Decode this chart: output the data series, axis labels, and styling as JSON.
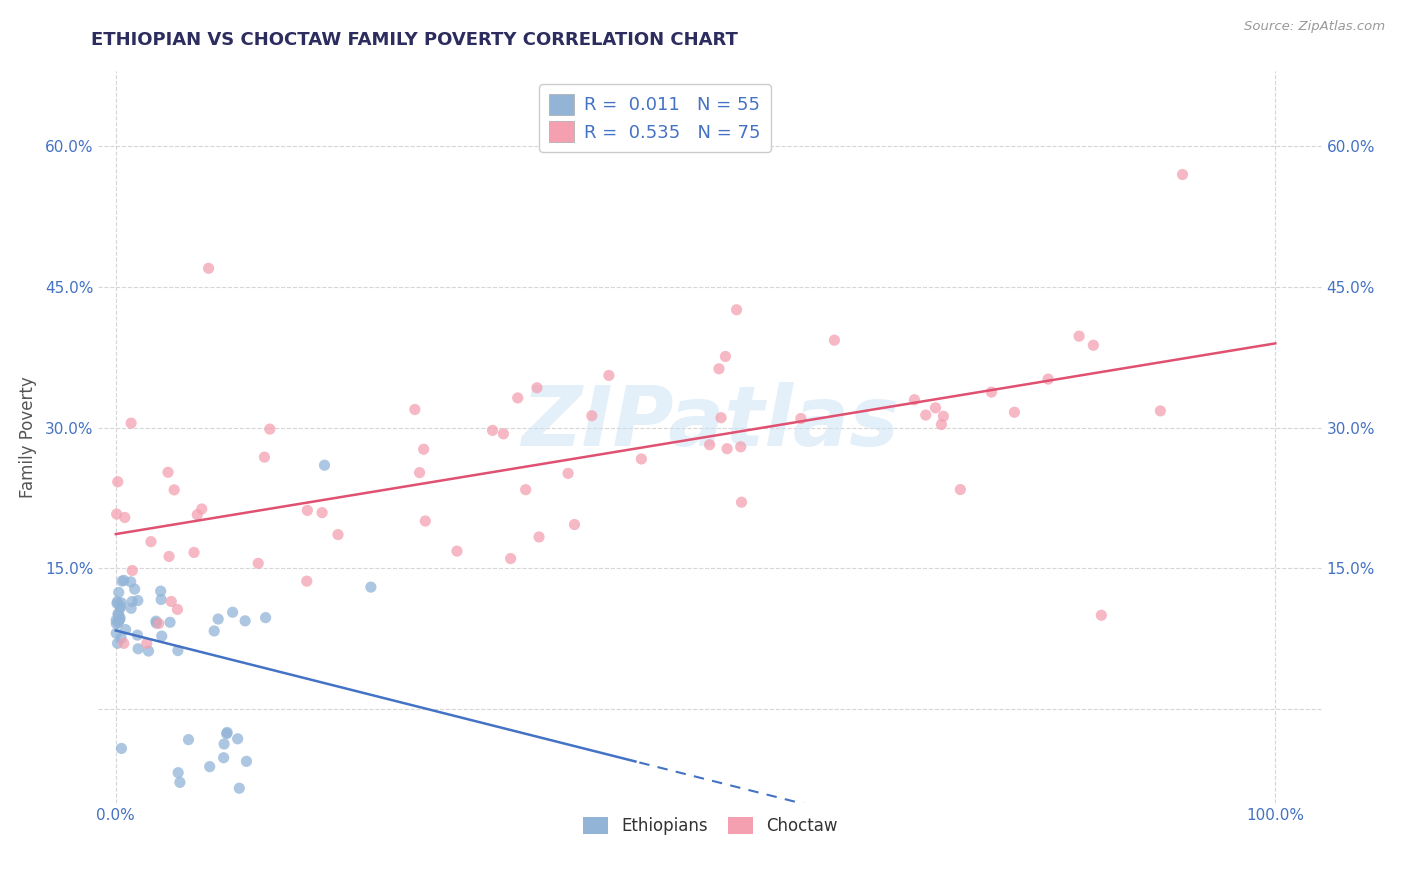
{
  "title": "ETHIOPIAN VS CHOCTAW FAMILY POVERTY CORRELATION CHART",
  "source": "Source: ZipAtlas.com",
  "ylabel": "Family Poverty",
  "watermark_text": "ZIPatlas",
  "ethiopian_color": "#92b4d7",
  "choctaw_color": "#f4a0b0",
  "ethiopian_line_color": "#4472c4",
  "choctaw_line_color": "#e05070",
  "legend_eth_label": "R =  0.011   N = 55",
  "legend_cho_label": "R =  0.535   N = 75",
  "title_color": "#2c2c5e",
  "source_color": "#999999",
  "axis_label_color": "#4472c4",
  "grid_color": "#cccccc",
  "background_color": "#ffffff",
  "ylim_min": -0.1,
  "ylim_max": 0.68,
  "xlim_min": -0.015,
  "xlim_max": 1.04,
  "ytick_vals": [
    0.0,
    0.15,
    0.3,
    0.45,
    0.6
  ],
  "ytick_labels_left": [
    "",
    "15.0%",
    "30.0%",
    "45.0%",
    "60.0%"
  ],
  "ytick_labels_right": [
    "",
    "15.0%",
    "30.0%",
    "45.0%",
    "60.0%"
  ],
  "xtick_vals": [
    0.0,
    1.0
  ],
  "xtick_labels": [
    "0.0%",
    "100.0%"
  ]
}
